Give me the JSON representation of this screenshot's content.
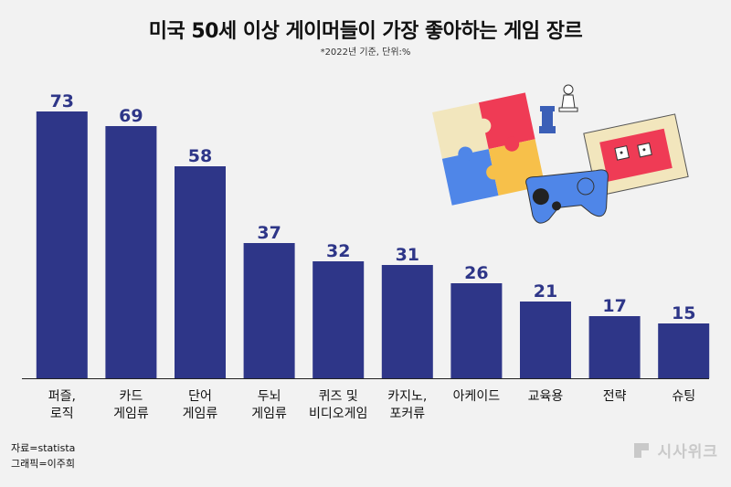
{
  "title": "미국 50세 이상 게이머들이 가장 좋아하는 게임 장르",
  "subtitle": "*2022년 기준, 단위:%",
  "colors": {
    "bar": "#2e3688",
    "label": "#2e3688",
    "background": "#f2f2f2"
  },
  "chart_data": {
    "type": "bar",
    "categories": [
      [
        "퍼즐,",
        "로직"
      ],
      [
        "카드",
        "게임류"
      ],
      [
        "단어",
        "게임류"
      ],
      [
        "두뇌",
        "게임류"
      ],
      [
        "퀴즈 및",
        "비디오게임"
      ],
      [
        "카지노,",
        "포커류"
      ],
      [
        "아케이드"
      ],
      [
        "교육용"
      ],
      [
        "전략"
      ],
      [
        "슈팅"
      ]
    ],
    "values": [
      73,
      69,
      58,
      37,
      32,
      31,
      26,
      21,
      17,
      15
    ],
    "ylim": [
      0,
      80
    ],
    "grid": false,
    "legend": "none"
  },
  "footer": {
    "source": "자료=statista",
    "graphic": "그래픽=이주희"
  },
  "brand": {
    "name": "시사위크"
  }
}
